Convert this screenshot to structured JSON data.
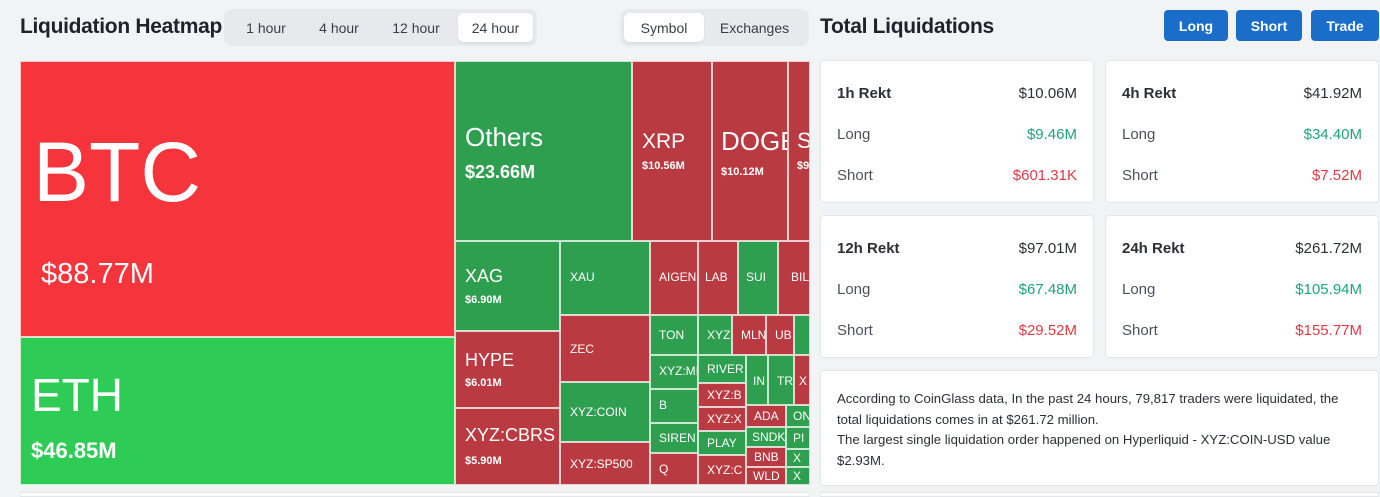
{
  "heatmap": {
    "title": "Liquidation Heatmap",
    "timeframes": [
      "1 hour",
      "4 hour",
      "12 hour",
      "24 hour"
    ],
    "active_timeframe": "24 hour",
    "views": [
      "Symbol",
      "Exchanges"
    ],
    "active_view": "Symbol",
    "cells": {
      "btc": {
        "symbol": "BTC",
        "value": "$88.77M",
        "side": "short"
      },
      "eth": {
        "symbol": "ETH",
        "value": "$46.85M",
        "side": "long"
      },
      "others": {
        "symbol": "Others",
        "value": "$23.66M",
        "side": "long"
      },
      "xrp": {
        "symbol": "XRP",
        "value": "$10.56M",
        "side": "short"
      },
      "doge": {
        "symbol": "DOGE",
        "value": "$10.12M",
        "side": "short"
      },
      "s_partial": {
        "symbol": "S",
        "value": "$9",
        "side": "short"
      },
      "xag": {
        "symbol": "XAG",
        "value": "$6.90M",
        "side": "long"
      },
      "xau": {
        "symbol": "XAU"
      },
      "aigen": {
        "symbol": "AIGEN"
      },
      "lab": {
        "symbol": "LAB"
      },
      "sui": {
        "symbol": "SUI"
      },
      "bil": {
        "symbol": "BIL"
      },
      "hype": {
        "symbol": "HYPE",
        "value": "$6.01M",
        "side": "short"
      },
      "zec": {
        "symbol": "ZEC"
      },
      "ton": {
        "symbol": "TON"
      },
      "xyz_top": {
        "symbol": "XYZ"
      },
      "mln": {
        "symbol": "MLN"
      },
      "ub": {
        "symbol": "UB"
      },
      "xyz_mi": {
        "symbol": "XYZ:MI"
      },
      "river": {
        "symbol": "RIVER"
      },
      "in": {
        "symbol": "IN"
      },
      "tr": {
        "symbol": "TR"
      },
      "x": {
        "symbol": "X"
      },
      "xyzcoin": {
        "symbol": "XYZ:COIN"
      },
      "b": {
        "symbol": "B"
      },
      "xyz_b": {
        "symbol": "XYZ:B"
      },
      "xyz_x": {
        "symbol": "XYZ:X"
      },
      "ada": {
        "symbol": "ADA"
      },
      "on": {
        "symbol": "ON"
      },
      "xyzcbrs": {
        "symbol": "XYZ:CBRS",
        "value": "$5.90M",
        "side": "short"
      },
      "siren": {
        "symbol": "SIREN"
      },
      "sndk": {
        "symbol": "SNDK"
      },
      "pi": {
        "symbol": "PI"
      },
      "play": {
        "symbol": "PLAY"
      },
      "bnb": {
        "symbol": "BNB"
      },
      "y1": {
        "symbol": "X"
      },
      "xyzsp500": {
        "symbol": "XYZ:SP500"
      },
      "q": {
        "symbol": "Q"
      },
      "xyz_c": {
        "symbol": "XYZ:C"
      },
      "wld": {
        "symbol": "WLD"
      },
      "y2": {
        "symbol": "X"
      }
    }
  },
  "total": {
    "title": "Total Liquidations",
    "buttons": {
      "long": "Long",
      "short": "Short",
      "trade": "Trade"
    },
    "cards": [
      {
        "label": "1h Rekt",
        "total": "$10.06M",
        "long_label": "Long",
        "long": "$9.46M",
        "short_label": "Short",
        "short": "$601.31K"
      },
      {
        "label": "4h Rekt",
        "total": "$41.92M",
        "long_label": "Long",
        "long": "$34.40M",
        "short_label": "Short",
        "short": "$7.52M"
      },
      {
        "label": "12h Rekt",
        "total": "$97.01M",
        "long_label": "Long",
        "long": "$67.48M",
        "short_label": "Short",
        "short": "$29.52M"
      },
      {
        "label": "24h Rekt",
        "total": "$261.72M",
        "long_label": "Long",
        "long": "$105.94M",
        "short_label": "Short",
        "short": "$155.77M"
      }
    ],
    "summary": "According to CoinGlass data, In the past 24 hours, 79,817 traders were liquidated, the total liquidations comes in at $261.72 million.",
    "summary2": "The largest single liquidation order happened on Hyperliquid - XYZ:COIN-USD value $2.93M."
  },
  "colors": {
    "long_green": "#2fcc55",
    "short_red": "#f5343b",
    "dark_green": "#2e9e4f",
    "dark_red": "#b93a40",
    "accent_blue": "#1a6dc8",
    "text_green": "#1ea576",
    "text_red": "#e03a46"
  }
}
